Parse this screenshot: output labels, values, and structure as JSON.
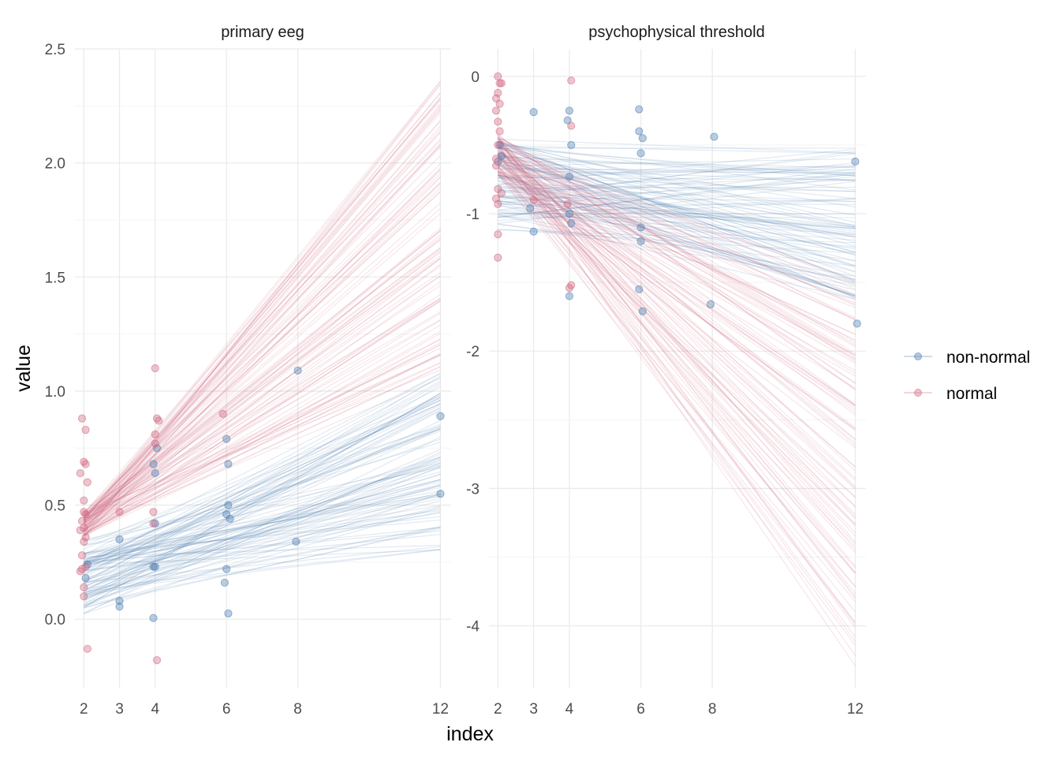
{
  "chart_data": {
    "type": "line",
    "xlabel": "index",
    "ylabel": "value",
    "legend": {
      "position": "right",
      "entries": [
        {
          "label": "non-normal",
          "color": "#4a7bb0"
        },
        {
          "label": "normal",
          "color": "#d0667e"
        }
      ]
    },
    "grid": true,
    "x_ticks": [
      "2",
      "3",
      "4",
      "6",
      "8",
      "12"
    ],
    "panels": [
      {
        "title": "primary eeg",
        "xlim": [
          1.75,
          12.3
        ],
        "ylim": [
          -0.3,
          2.5
        ],
        "y_ticks": [
          "0.0",
          "0.5",
          "1.0",
          "1.5",
          "2.0",
          "2.5"
        ],
        "lines": {
          "non-normal": {
            "intercept_at_2": [
              0.02,
              0.35
            ],
            "value_at_12": [
              0.3,
              1.08
            ],
            "count": 100
          },
          "normal": {
            "intercept_at_2": [
              0.36,
              0.47
            ],
            "value_at_12": [
              1.05,
              2.37
            ],
            "count": 100
          }
        },
        "points": {
          "non-normal": [
            [
              2.05,
              0.18
            ],
            [
              2.1,
              0.24
            ],
            [
              3,
              0.35
            ],
            [
              3,
              0.08
            ],
            [
              3,
              0.055
            ],
            [
              4,
              0.23
            ],
            [
              3.95,
              0.23
            ],
            [
              3.95,
              0.005
            ],
            [
              4,
              0.42
            ],
            [
              3.95,
              0.68
            ],
            [
              4,
              0.64
            ],
            [
              4.05,
              0.75
            ],
            [
              6,
              0.79
            ],
            [
              6.05,
              0.68
            ],
            [
              6.05,
              0.5
            ],
            [
              6,
              0.46
            ],
            [
              6.1,
              0.44
            ],
            [
              6,
              0.22
            ],
            [
              5.95,
              0.16
            ],
            [
              6.05,
              0.025
            ],
            [
              7.95,
              0.34
            ],
            [
              8,
              1.09
            ],
            [
              12,
              0.89
            ],
            [
              12,
              0.55
            ]
          ],
          "normal": [
            [
              1.95,
              0.88
            ],
            [
              2.05,
              0.83
            ],
            [
              2,
              0.69
            ],
            [
              2.05,
              0.68
            ],
            [
              1.9,
              0.64
            ],
            [
              2.1,
              0.6
            ],
            [
              2,
              0.52
            ],
            [
              2,
              0.47
            ],
            [
              2.05,
              0.46
            ],
            [
              1.95,
              0.43
            ],
            [
              2,
              0.4
            ],
            [
              1.9,
              0.39
            ],
            [
              2.05,
              0.36
            ],
            [
              2,
              0.34
            ],
            [
              1.95,
              0.28
            ],
            [
              2.05,
              0.23
            ],
            [
              1.95,
              0.22
            ],
            [
              1.9,
              0.21
            ],
            [
              2,
              0.14
            ],
            [
              2,
              0.1
            ],
            [
              2.1,
              -0.13
            ],
            [
              3,
              0.47
            ],
            [
              4,
              1.1
            ],
            [
              4.05,
              0.88
            ],
            [
              4.1,
              0.87
            ],
            [
              4,
              0.81
            ],
            [
              4,
              0.77
            ],
            [
              3.95,
              0.47
            ],
            [
              3.95,
              0.42
            ],
            [
              4.05,
              -0.18
            ],
            [
              5.9,
              0.9
            ]
          ]
        }
      },
      {
        "title": "psychophysical threshold",
        "xlim": [
          1.75,
          12.3
        ],
        "ylim": [
          -4.45,
          0.2
        ],
        "y_ticks": [
          "-4",
          "-3",
          "-2",
          "-1",
          "0"
        ],
        "lines": {
          "non-normal": {
            "intercept_at_2": [
              -1.12,
              -0.45
            ],
            "value_at_12": [
              -1.63,
              -0.52
            ],
            "count": 100
          },
          "normal": {
            "intercept_at_2": [
              -0.72,
              -0.42
            ],
            "value_at_12": [
              -4.3,
              -1.4
            ],
            "count": 100
          }
        },
        "points": {
          "non-normal": [
            [
              2,
              -0.62
            ],
            [
              2.05,
              -0.5
            ],
            [
              2.1,
              -0.58
            ],
            [
              3,
              -0.26
            ],
            [
              2.9,
              -0.96
            ],
            [
              3,
              -1.13
            ],
            [
              3.95,
              -0.32
            ],
            [
              4,
              -0.25
            ],
            [
              4.05,
              -0.5
            ],
            [
              4,
              -0.73
            ],
            [
              4,
              -1.0
            ],
            [
              4.05,
              -1.07
            ],
            [
              4,
              -1.6
            ],
            [
              5.95,
              -0.24
            ],
            [
              5.95,
              -0.4
            ],
            [
              6.05,
              -0.45
            ],
            [
              6,
              -0.56
            ],
            [
              6,
              -1.1
            ],
            [
              6,
              -1.2
            ],
            [
              5.95,
              -1.55
            ],
            [
              6.05,
              -1.71
            ],
            [
              8.05,
              -0.44
            ],
            [
              7.95,
              -1.66
            ],
            [
              12,
              -0.62
            ],
            [
              12.05,
              -1.8
            ]
          ],
          "normal": [
            [
              2,
              0.0
            ],
            [
              2.05,
              -0.05
            ],
            [
              2.1,
              -0.05
            ],
            [
              2,
              -0.12
            ],
            [
              1.95,
              -0.16
            ],
            [
              2.05,
              -0.2
            ],
            [
              1.95,
              -0.25
            ],
            [
              2,
              -0.33
            ],
            [
              2.05,
              -0.4
            ],
            [
              2,
              -0.5
            ],
            [
              1.95,
              -0.6
            ],
            [
              1.95,
              -0.65
            ],
            [
              2,
              -0.82
            ],
            [
              2.1,
              -0.85
            ],
            [
              1.95,
              -0.89
            ],
            [
              2,
              -0.93
            ],
            [
              2,
              -1.15
            ],
            [
              2,
              -1.32
            ],
            [
              3,
              -0.9
            ],
            [
              4.05,
              -0.03
            ],
            [
              4.05,
              -0.36
            ],
            [
              3.95,
              -0.93
            ],
            [
              4.05,
              -1.52
            ],
            [
              4,
              -1.54
            ]
          ]
        }
      }
    ]
  }
}
